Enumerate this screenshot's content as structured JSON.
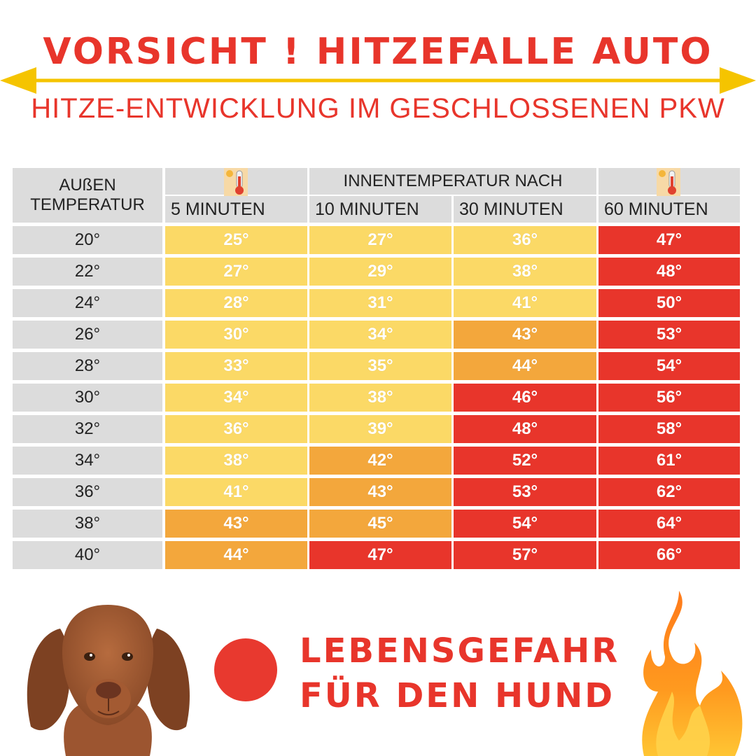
{
  "header": {
    "title": "VORSICHT ! HITZEFALLE AUTO",
    "subtitle": "HITZE-ENTWICKLUNG IM GESCHLOSSENEN PKW"
  },
  "table": {
    "corner_header": [
      "AUßEN",
      "TEMPERATUR"
    ],
    "group_header": "INNENTEMPERATUR NACH",
    "columns": [
      "5 MINUTEN",
      "10 MINUTEN",
      "30 MINUTEN",
      "60 MINUTEN"
    ],
    "rows": [
      {
        "outside": "20°",
        "values": [
          "25°",
          "27°",
          "36°",
          "47°"
        ],
        "levels": [
          "yellow",
          "yellow",
          "yellow",
          "red"
        ]
      },
      {
        "outside": "22°",
        "values": [
          "27°",
          "29°",
          "38°",
          "48°"
        ],
        "levels": [
          "yellow",
          "yellow",
          "yellow",
          "red"
        ]
      },
      {
        "outside": "24°",
        "values": [
          "28°",
          "31°",
          "41°",
          "50°"
        ],
        "levels": [
          "yellow",
          "yellow",
          "yellow",
          "red"
        ]
      },
      {
        "outside": "26°",
        "values": [
          "30°",
          "34°",
          "43°",
          "53°"
        ],
        "levels": [
          "yellow",
          "yellow",
          "orange",
          "red"
        ]
      },
      {
        "outside": "28°",
        "values": [
          "33°",
          "35°",
          "44°",
          "54°"
        ],
        "levels": [
          "yellow",
          "yellow",
          "orange",
          "red"
        ]
      },
      {
        "outside": "30°",
        "values": [
          "34°",
          "38°",
          "46°",
          "56°"
        ],
        "levels": [
          "yellow",
          "yellow",
          "red",
          "red"
        ]
      },
      {
        "outside": "32°",
        "values": [
          "36°",
          "39°",
          "48°",
          "58°"
        ],
        "levels": [
          "yellow",
          "yellow",
          "red",
          "red"
        ]
      },
      {
        "outside": "34°",
        "values": [
          "38°",
          "42°",
          "52°",
          "61°"
        ],
        "levels": [
          "yellow",
          "orange",
          "red",
          "red"
        ]
      },
      {
        "outside": "36°",
        "values": [
          "41°",
          "43°",
          "53°",
          "62°"
        ],
        "levels": [
          "yellow",
          "orange",
          "red",
          "red"
        ]
      },
      {
        "outside": "38°",
        "values": [
          "43°",
          "45°",
          "54°",
          "64°"
        ],
        "levels": [
          "orange",
          "orange",
          "red",
          "red"
        ]
      },
      {
        "outside": "40°",
        "values": [
          "44°",
          "47°",
          "57°",
          "66°"
        ],
        "levels": [
          "orange",
          "red",
          "red",
          "red"
        ]
      }
    ]
  },
  "warning": {
    "line1": "LEBENSGEFAHR",
    "line2": "FÜR DEN HUND"
  },
  "colors": {
    "title_red": "#e8352b",
    "arrow_yellow": "#f5c400",
    "header_gray": "#dcdcdc",
    "yellow": "#fbd966",
    "orange": "#f3a73c",
    "red": "#e8352b"
  },
  "icons": [
    "thermometer-icon",
    "thermometer-icon",
    "dog-image",
    "flame-icon"
  ]
}
